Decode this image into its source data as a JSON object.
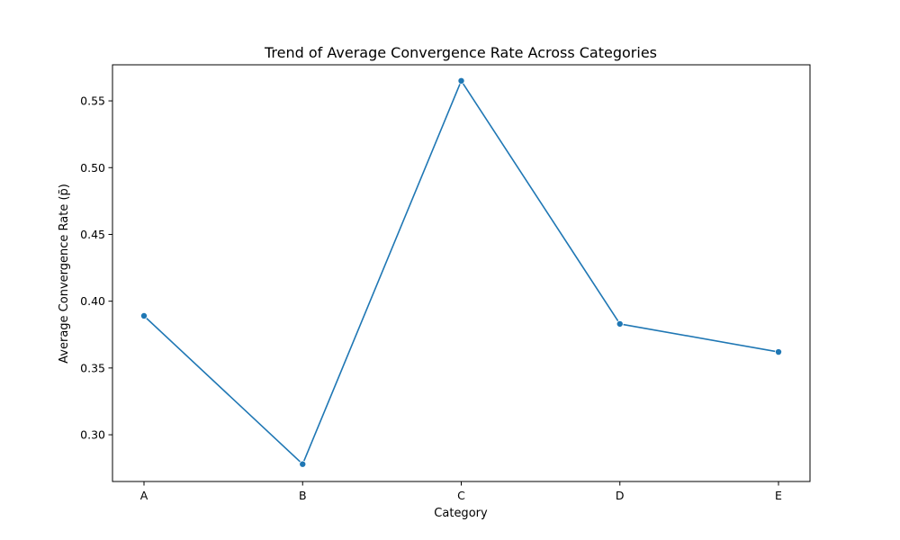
{
  "chart_data": {
    "type": "line",
    "title": "Trend of Average Convergence Rate Across Categories",
    "xlabel": "Category",
    "ylabel": "Average Convergence Rate (p̄)",
    "categories": [
      "A",
      "B",
      "C",
      "D",
      "E"
    ],
    "series": [
      {
        "values": [
          0.389,
          0.278,
          0.565,
          0.383,
          0.362
        ]
      }
    ],
    "ylim": [
      0.265,
      0.577
    ],
    "yticks": [
      0.3,
      0.35,
      0.4,
      0.45,
      0.5,
      0.55
    ],
    "ytick_labels": [
      "0.30",
      "0.35",
      "0.40",
      "0.45",
      "0.50",
      "0.55"
    ],
    "grid": false,
    "line_color": "#1f77b4",
    "marker": "circle"
  }
}
